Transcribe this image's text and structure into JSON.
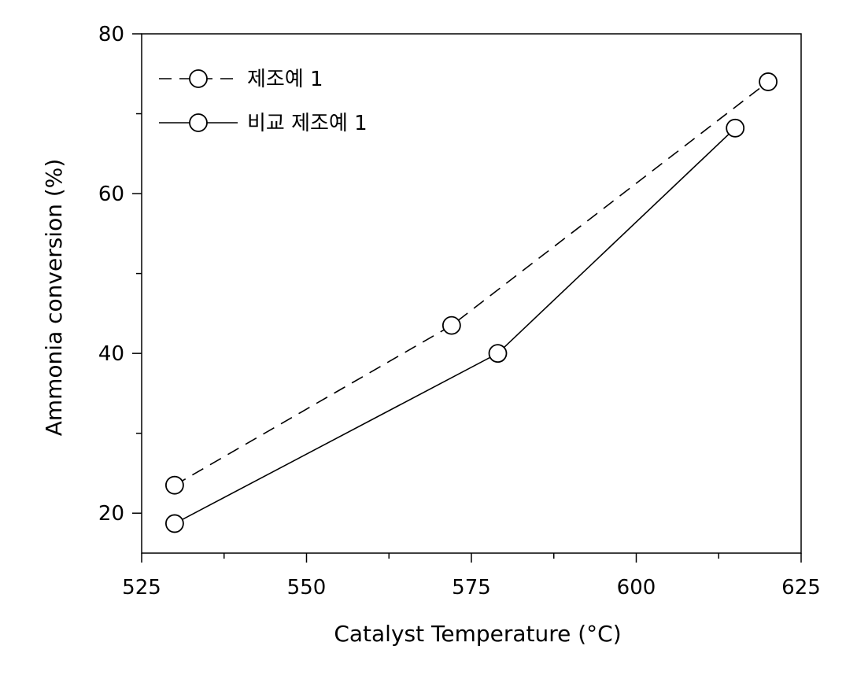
{
  "chart_data": {
    "type": "line",
    "xlabel": "Catalyst Temperature (°C)",
    "ylabel": "Ammonia conversion (%)",
    "xlim": [
      525,
      625
    ],
    "ylim": [
      15,
      80
    ],
    "x_ticks": [
      525,
      550,
      575,
      600,
      625
    ],
    "x_minor_ticks": [
      537.5,
      562.5,
      587.5,
      612.5
    ],
    "y_ticks": [
      20,
      40,
      60,
      80
    ],
    "y_minor_ticks": [
      30,
      50,
      70
    ],
    "grid": false,
    "legend_position": "top-left",
    "series": [
      {
        "name": "제조예 1",
        "line_style": "dashed",
        "marker": "open-circle",
        "color": "#000000",
        "x": [
          530,
          572,
          620
        ],
        "y": [
          23.5,
          43.5,
          74
        ]
      },
      {
        "name": "비교 제조예 1",
        "line_style": "solid",
        "marker": "open-circle",
        "color": "#000000",
        "x": [
          530,
          579,
          615
        ],
        "y": [
          18.7,
          40,
          68.2
        ]
      }
    ]
  }
}
